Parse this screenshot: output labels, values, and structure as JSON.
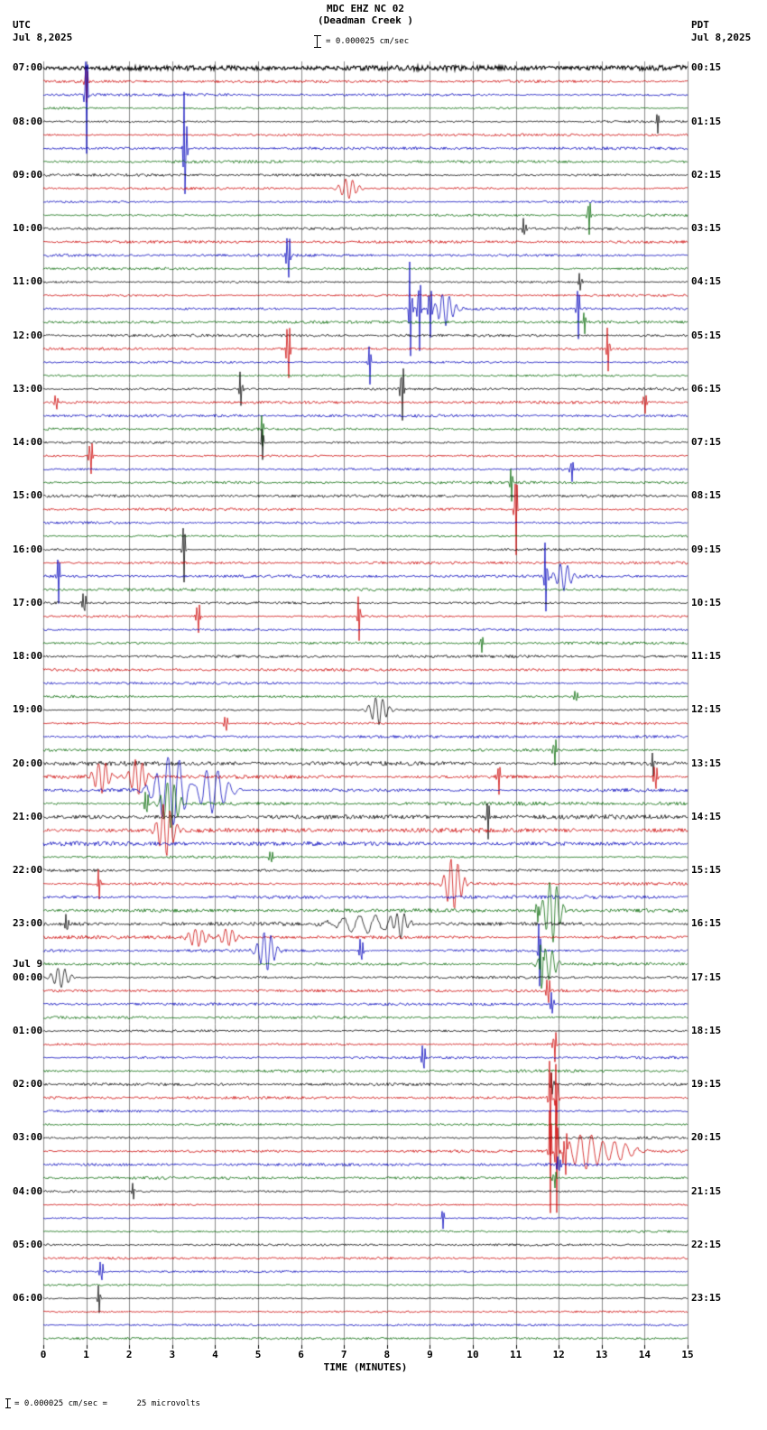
{
  "header": {
    "title_line1": "MDC EHZ NC 02",
    "title_line2": "(Deadman Creek )",
    "scale_label": "= 0.000025 cm/sec",
    "left_tz": "UTC",
    "left_date": "Jul 8,2025",
    "right_tz": "PDT",
    "right_date": "Jul 8,2025"
  },
  "footer": {
    "scale_note": "= 0.000025 cm/sec =      25 microvolts"
  },
  "chart_data": {
    "type": "seismogram",
    "title": "MDC EHZ NC 02 (Deadman Creek )",
    "xlabel": "TIME (MINUTES)",
    "x_ticks": [
      0,
      1,
      2,
      3,
      4,
      5,
      6,
      7,
      8,
      9,
      10,
      11,
      12,
      13,
      14,
      15
    ],
    "minutes_per_line": 15,
    "lines_per_hour": 4,
    "num_rows": 96,
    "trace_colors": [
      "#000000",
      "#cc0000",
      "#0000bb",
      "#006600"
    ],
    "grid_color": "#8a8a8a",
    "left_labels": [
      {
        "row": 0,
        "text": "07:00"
      },
      {
        "row": 4,
        "text": "08:00"
      },
      {
        "row": 8,
        "text": "09:00"
      },
      {
        "row": 12,
        "text": "10:00"
      },
      {
        "row": 16,
        "text": "11:00"
      },
      {
        "row": 20,
        "text": "12:00"
      },
      {
        "row": 24,
        "text": "13:00"
      },
      {
        "row": 28,
        "text": "14:00"
      },
      {
        "row": 32,
        "text": "15:00"
      },
      {
        "row": 36,
        "text": "16:00"
      },
      {
        "row": 40,
        "text": "17:00"
      },
      {
        "row": 44,
        "text": "18:00"
      },
      {
        "row": 48,
        "text": "19:00"
      },
      {
        "row": 52,
        "text": "20:00"
      },
      {
        "row": 56,
        "text": "21:00"
      },
      {
        "row": 60,
        "text": "22:00"
      },
      {
        "row": 64,
        "text": "23:00"
      },
      {
        "row": 67,
        "text": "Jul 9"
      },
      {
        "row": 68,
        "text": "00:00"
      },
      {
        "row": 72,
        "text": "01:00"
      },
      {
        "row": 76,
        "text": "02:00"
      },
      {
        "row": 80,
        "text": "03:00"
      },
      {
        "row": 84,
        "text": "04:00"
      },
      {
        "row": 88,
        "text": "05:00"
      },
      {
        "row": 92,
        "text": "06:00"
      }
    ],
    "right_labels": [
      {
        "row": 0,
        "text": "00:15"
      },
      {
        "row": 4,
        "text": "01:15"
      },
      {
        "row": 8,
        "text": "02:15"
      },
      {
        "row": 12,
        "text": "03:15"
      },
      {
        "row": 16,
        "text": "04:15"
      },
      {
        "row": 20,
        "text": "05:15"
      },
      {
        "row": 24,
        "text": "06:15"
      },
      {
        "row": 28,
        "text": "07:15"
      },
      {
        "row": 32,
        "text": "08:15"
      },
      {
        "row": 36,
        "text": "09:15"
      },
      {
        "row": 40,
        "text": "10:15"
      },
      {
        "row": 44,
        "text": "11:15"
      },
      {
        "row": 48,
        "text": "12:15"
      },
      {
        "row": 52,
        "text": "13:15"
      },
      {
        "row": 56,
        "text": "14:15"
      },
      {
        "row": 60,
        "text": "15:15"
      },
      {
        "row": 64,
        "text": "16:15"
      },
      {
        "row": 68,
        "text": "17:15"
      },
      {
        "row": 72,
        "text": "18:15"
      },
      {
        "row": 76,
        "text": "19:15"
      },
      {
        "row": 80,
        "text": "20:15"
      },
      {
        "row": 84,
        "text": "21:15"
      },
      {
        "row": 88,
        "text": "22:15"
      },
      {
        "row": 92,
        "text": "23:15"
      }
    ],
    "noise": {
      "base": 1.4,
      "row0": 2.6,
      "bands": [
        {
          "from": 52,
          "to": 58,
          "amp": 2.2
        },
        {
          "from": 60,
          "to": 67,
          "amp": 1.8
        },
        {
          "from": 84,
          "to": 95,
          "amp": 1.1
        }
      ]
    },
    "events": [
      {
        "r": 1,
        "m": 1.0,
        "a": 25,
        "t": "spike"
      },
      {
        "r": 2,
        "m": 1.0,
        "a": 70,
        "t": "spike"
      },
      {
        "r": 4,
        "m": 14.3,
        "a": 14,
        "t": "spike"
      },
      {
        "r": 6,
        "m": 3.3,
        "a": 90,
        "t": "spike"
      },
      {
        "r": 9,
        "m": 7.1,
        "a": 12,
        "t": "burst_s"
      },
      {
        "r": 11,
        "m": 12.7,
        "a": 25,
        "t": "spike"
      },
      {
        "r": 12,
        "m": 11.2,
        "a": 16,
        "t": "spike"
      },
      {
        "r": 14,
        "m": 5.7,
        "a": 45,
        "t": "spike"
      },
      {
        "r": 16,
        "m": 12.5,
        "a": 14,
        "t": "spike"
      },
      {
        "r": 18,
        "m": 8.55,
        "a": 70,
        "t": "spike"
      },
      {
        "r": 18,
        "m": 8.75,
        "a": 55,
        "t": "spike"
      },
      {
        "r": 18,
        "m": 9.0,
        "a": 45,
        "t": "spike"
      },
      {
        "r": 18,
        "m": 9.35,
        "a": 18,
        "t": "burst_s"
      },
      {
        "r": 18,
        "m": 12.45,
        "a": 35,
        "t": "spike"
      },
      {
        "r": 19,
        "m": 12.6,
        "a": 14,
        "t": "spike"
      },
      {
        "r": 21,
        "m": 5.7,
        "a": 55,
        "t": "spike"
      },
      {
        "r": 21,
        "m": 13.15,
        "a": 30,
        "t": "spike"
      },
      {
        "r": 22,
        "m": 7.6,
        "a": 25,
        "t": "spike"
      },
      {
        "r": 24,
        "m": 4.6,
        "a": 25,
        "t": "spike"
      },
      {
        "r": 24,
        "m": 8.35,
        "a": 45,
        "t": "spike"
      },
      {
        "r": 25,
        "m": 0.3,
        "a": 14,
        "t": "spike"
      },
      {
        "r": 25,
        "m": 14.0,
        "a": 18,
        "t": "spike"
      },
      {
        "r": 27,
        "m": 5.1,
        "a": 20,
        "t": "spike"
      },
      {
        "r": 28,
        "m": 5.1,
        "a": 20,
        "t": "spike"
      },
      {
        "r": 29,
        "m": 1.1,
        "a": 30,
        "t": "spike"
      },
      {
        "r": 30,
        "m": 12.3,
        "a": 18,
        "t": "spike"
      },
      {
        "r": 31,
        "m": 10.9,
        "a": 22,
        "t": "spike"
      },
      {
        "r": 33,
        "m": 11.0,
        "a": 55,
        "t": "spike"
      },
      {
        "r": 36,
        "m": 3.27,
        "a": 38,
        "t": "spike"
      },
      {
        "r": 38,
        "m": 0.35,
        "a": 30,
        "t": "spike"
      },
      {
        "r": 38,
        "m": 11.7,
        "a": 48,
        "t": "spike"
      },
      {
        "r": 38,
        "m": 12.1,
        "a": 16,
        "t": "burst_s"
      },
      {
        "r": 40,
        "m": 0.95,
        "a": 20,
        "t": "spike"
      },
      {
        "r": 41,
        "m": 3.6,
        "a": 28,
        "t": "spike"
      },
      {
        "r": 41,
        "m": 7.35,
        "a": 30,
        "t": "spike"
      },
      {
        "r": 43,
        "m": 10.2,
        "a": 12,
        "t": "spike"
      },
      {
        "r": 47,
        "m": 12.4,
        "a": 12,
        "t": "spike"
      },
      {
        "r": 48,
        "m": 7.8,
        "a": 16,
        "t": "burst_s"
      },
      {
        "r": 49,
        "m": 4.25,
        "a": 15,
        "t": "spike"
      },
      {
        "r": 51,
        "m": 11.9,
        "a": 22,
        "t": "spike"
      },
      {
        "r": 52,
        "m": 14.2,
        "a": 16,
        "t": "spike"
      },
      {
        "r": 53,
        "m": 1.35,
        "a": 18,
        "t": "burst_s"
      },
      {
        "r": 53,
        "m": 2.2,
        "a": 20,
        "t": "burst_s"
      },
      {
        "r": 53,
        "m": 10.6,
        "a": 20,
        "t": "spike"
      },
      {
        "r": 53,
        "m": 14.25,
        "a": 25,
        "t": "spike"
      },
      {
        "r": 54,
        "m": 3.0,
        "a": 40,
        "t": "burst"
      },
      {
        "r": 54,
        "m": 3.9,
        "a": 25,
        "t": "burst"
      },
      {
        "r": 55,
        "m": 2.4,
        "a": 25,
        "t": "spike"
      },
      {
        "r": 55,
        "m": 2.95,
        "a": 28,
        "t": "burst_s"
      },
      {
        "r": 56,
        "m": 10.35,
        "a": 25,
        "t": "spike"
      },
      {
        "r": 57,
        "m": 2.85,
        "a": 30,
        "t": "burst_s"
      },
      {
        "r": 59,
        "m": 5.3,
        "a": 12,
        "t": "spike"
      },
      {
        "r": 61,
        "m": 1.3,
        "a": 20,
        "t": "spike"
      },
      {
        "r": 61,
        "m": 9.55,
        "a": 30,
        "t": "burst_s"
      },
      {
        "r": 63,
        "m": 11.5,
        "a": 18,
        "t": "spike"
      },
      {
        "r": 63,
        "m": 11.85,
        "a": 35,
        "t": "burst_s"
      },
      {
        "r": 64,
        "m": 0.55,
        "a": 15,
        "t": "spike"
      },
      {
        "r": 64,
        "m": 7.5,
        "a": 10,
        "t": "burst_w"
      },
      {
        "r": 64,
        "m": 8.3,
        "a": 14,
        "t": "burst_s"
      },
      {
        "r": 65,
        "m": 3.6,
        "a": 12,
        "t": "burst_s"
      },
      {
        "r": 65,
        "m": 4.3,
        "a": 10,
        "t": "burst_s"
      },
      {
        "r": 66,
        "m": 5.2,
        "a": 22,
        "t": "burst_s"
      },
      {
        "r": 66,
        "m": 7.4,
        "a": 25,
        "t": "spike"
      },
      {
        "r": 66,
        "m": 11.55,
        "a": 40,
        "t": "spike"
      },
      {
        "r": 67,
        "m": 11.6,
        "a": 40,
        "t": "spike"
      },
      {
        "r": 67,
        "m": 11.75,
        "a": 18,
        "t": "burst_s"
      },
      {
        "r": 68,
        "m": 0.4,
        "a": 12,
        "t": "burst_s"
      },
      {
        "r": 69,
        "m": 11.75,
        "a": 25,
        "t": "spike"
      },
      {
        "r": 70,
        "m": 11.85,
        "a": 18,
        "t": "spike"
      },
      {
        "r": 73,
        "m": 11.9,
        "a": 25,
        "t": "spike"
      },
      {
        "r": 74,
        "m": 8.85,
        "a": 28,
        "t": "spike"
      },
      {
        "r": 76,
        "m": 11.85,
        "a": 20,
        "t": "spike"
      },
      {
        "r": 77,
        "m": 11.8,
        "a": 65,
        "t": "spike"
      },
      {
        "r": 77,
        "m": 11.95,
        "a": 50,
        "t": "spike"
      },
      {
        "r": 81,
        "m": 11.8,
        "a": 70,
        "t": "spike"
      },
      {
        "r": 81,
        "m": 11.95,
        "a": 75,
        "t": "spike"
      },
      {
        "r": 81,
        "m": 12.15,
        "a": 40,
        "t": "spike"
      },
      {
        "r": 81,
        "m": 12.6,
        "a": 20,
        "t": "burst"
      },
      {
        "r": 81,
        "m": 13.4,
        "a": 10,
        "t": "burst"
      },
      {
        "r": 82,
        "m": 12.0,
        "a": 18,
        "t": "spike"
      },
      {
        "r": 83,
        "m": 11.9,
        "a": 14,
        "t": "spike"
      },
      {
        "r": 84,
        "m": 2.1,
        "a": 12,
        "t": "spike"
      },
      {
        "r": 86,
        "m": 9.3,
        "a": 12,
        "t": "spike"
      },
      {
        "r": 90,
        "m": 1.35,
        "a": 22,
        "t": "spike"
      },
      {
        "r": 92,
        "m": 1.3,
        "a": 18,
        "t": "spike"
      }
    ]
  }
}
